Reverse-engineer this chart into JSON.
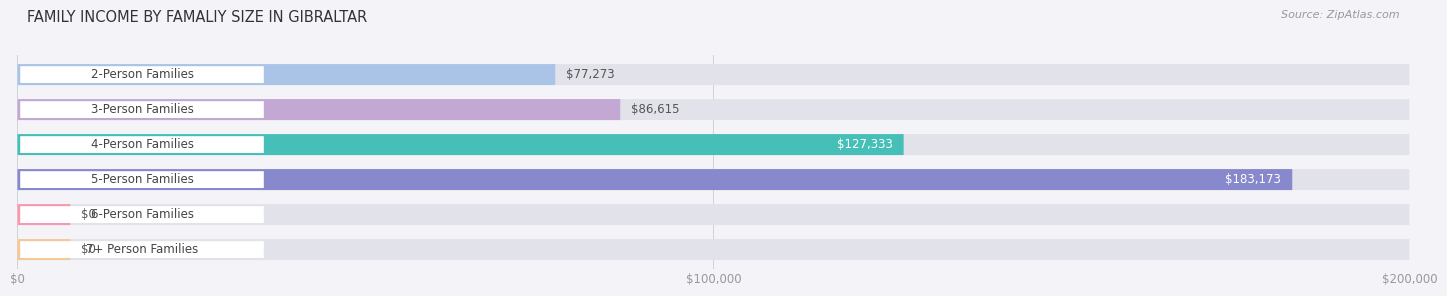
{
  "title": "FAMILY INCOME BY FAMALIY SIZE IN GIBRALTAR",
  "source": "Source: ZipAtlas.com",
  "categories": [
    "2-Person Families",
    "3-Person Families",
    "4-Person Families",
    "5-Person Families",
    "6-Person Families",
    "7+ Person Families"
  ],
  "values": [
    77273,
    86615,
    127333,
    183173,
    0,
    0
  ],
  "bar_colors": [
    "#aac4e8",
    "#c4a8d4",
    "#45bfb8",
    "#8888cc",
    "#f79ab0",
    "#f5c898"
  ],
  "bar_bg_color": "#e2e2ea",
  "value_labels": [
    "$77,273",
    "$86,615",
    "$127,333",
    "$183,173",
    "$0",
    "$0"
  ],
  "value_inside": [
    false,
    false,
    true,
    true,
    false,
    false
  ],
  "xlim": [
    0,
    200000
  ],
  "xticks": [
    0,
    100000,
    200000
  ],
  "xticklabels": [
    "$0",
    "$100,000",
    "$200,000"
  ],
  "title_fontsize": 10.5,
  "source_fontsize": 8,
  "label_fontsize": 8.5,
  "value_fontsize": 8.5,
  "background_color": "#f4f4f8"
}
